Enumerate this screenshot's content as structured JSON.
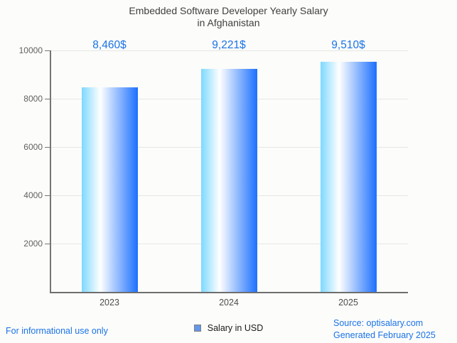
{
  "title": {
    "line1": "Embedded Software Developer Yearly Salary",
    "line2": "in Afghanistan"
  },
  "chart_data": {
    "type": "bar",
    "title": "Embedded Software Developer Yearly Salary in Afghanistan",
    "categories": [
      "2023",
      "2024",
      "2025"
    ],
    "values": [
      8460,
      9221,
      9510
    ],
    "value_labels": [
      "8,460$",
      "9,221$",
      "9,510$"
    ],
    "xlabel": "",
    "ylabel": "",
    "ylim": [
      0,
      10000
    ],
    "yticks": [
      2000,
      4000,
      6000,
      8000,
      10000
    ],
    "grid": true,
    "legend_position": "bottom",
    "series": [
      {
        "name": "Salary in USD",
        "values": [
          8460,
          9221,
          9510
        ]
      }
    ]
  },
  "legend": {
    "label": "Salary in USD"
  },
  "footer": {
    "left": "For informational use only",
    "source": "Source: optisalary.com",
    "generated": "Generated February 2025"
  },
  "colors": {
    "background": "#fcfcfa",
    "accent_blue": "#1a73e8",
    "title_text": "#3f3f3f",
    "axis": "#757575",
    "gridline": "#e6e6e6",
    "tick_text": "#616161",
    "bar_gradient_left": "#7ed8ff",
    "bar_gradient_mid": "#ffffff",
    "bar_gradient_right": "#1c70fe",
    "legend_fill": "#6496e9",
    "legend_border": "#808080"
  }
}
